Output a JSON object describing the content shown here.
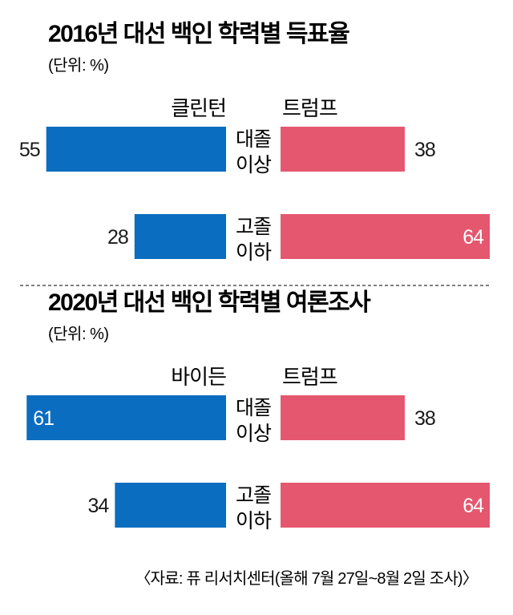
{
  "chart_data": [
    {
      "type": "bar",
      "orientation": "horizontal-diverging",
      "title": "2016년 대선 백인 학력별 득표율",
      "unit_label": "(단위: %)",
      "categories": [
        [
          "대졸",
          "이상"
        ],
        [
          "고졸",
          "이하"
        ]
      ],
      "series": [
        {
          "name": "클린턴",
          "values": [
            55,
            28
          ],
          "color": "#0b6dbf",
          "side": "left"
        },
        {
          "name": "트럼프",
          "values": [
            38,
            64
          ],
          "color": "#e5576e",
          "side": "right"
        }
      ],
      "xlim": [
        0,
        64
      ]
    },
    {
      "type": "bar",
      "orientation": "horizontal-diverging",
      "title": "2020년 대선 백인 학력별 여론조사",
      "unit_label": "(단위: %)",
      "categories": [
        [
          "대졸",
          "이상"
        ],
        [
          "고졸",
          "이하"
        ]
      ],
      "series": [
        {
          "name": "바이든",
          "values": [
            61,
            34
          ],
          "color": "#0b6dbf",
          "side": "left"
        },
        {
          "name": "트럼프",
          "values": [
            38,
            64
          ],
          "color": "#e5576e",
          "side": "right"
        }
      ],
      "xlim": [
        0,
        64
      ]
    }
  ],
  "source": "〈자료: 퓨 리서치센터(올해 7월 27일~8월 2일 조사)〉"
}
